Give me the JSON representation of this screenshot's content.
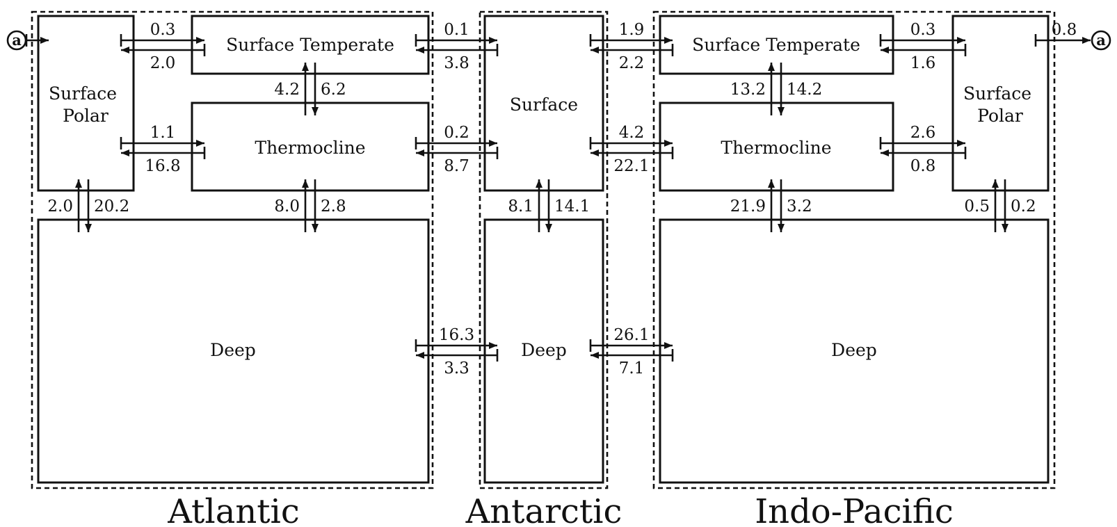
{
  "regions": {
    "atlantic": "Atlantic",
    "antarctic": "Antarctic",
    "indo_pacific": "Indo-Pacific"
  },
  "boxes": {
    "atl_surface_polar": "Surface Polar",
    "atl_surface_temperate": "Surface Temperate",
    "atl_thermocline": "Thermocline",
    "atl_deep": "Deep",
    "ant_surface": "Surface",
    "ant_deep": "Deep",
    "ip_surface_temperate": "Surface Temperate",
    "ip_thermocline": "Thermocline",
    "ip_surface_polar": "Surface Polar",
    "ip_deep": "Deep"
  },
  "connector": {
    "label": "a"
  },
  "flows": {
    "a_in": "",
    "atl_polar_temp_top": "0.3",
    "atl_polar_temp_bottom": "2.0",
    "atl_polar_therm_top": "1.1",
    "atl_polar_therm_bottom": "16.8",
    "atl_temp_therm_left": "4.2",
    "atl_temp_therm_right": "6.2",
    "atl_polar_deep_left": "2.0",
    "atl_polar_deep_right": "20.2",
    "atl_therm_deep_left": "8.0",
    "atl_therm_deep_right": "2.8",
    "atl_ant_temp_top": "0.1",
    "atl_ant_temp_bottom": "3.8",
    "atl_ant_therm_top": "0.2",
    "atl_ant_therm_bottom": "8.7",
    "atl_ant_deep_top": "16.3",
    "atl_ant_deep_bottom": "3.3",
    "ant_surf_deep_left": "8.1",
    "ant_surf_deep_right": "14.1",
    "ant_ip_temp_top": "1.9",
    "ant_ip_temp_bottom": "2.2",
    "ant_ip_therm_top": "4.2",
    "ant_ip_therm_bottom": "22.1",
    "ant_ip_deep_top": "26.1",
    "ant_ip_deep_bottom": "7.1",
    "ip_temp_therm_left": "13.2",
    "ip_temp_therm_right": "14.2",
    "ip_therm_deep_left": "21.9",
    "ip_therm_deep_right": "3.2",
    "ip_temp_polar_top": "0.3",
    "ip_temp_polar_bottom": "1.6",
    "ip_therm_polar_top": "2.6",
    "ip_therm_polar_bottom": "0.8",
    "ip_polar_deep_left": "0.5",
    "ip_polar_deep_right": "0.2",
    "a_out": "0.8"
  }
}
